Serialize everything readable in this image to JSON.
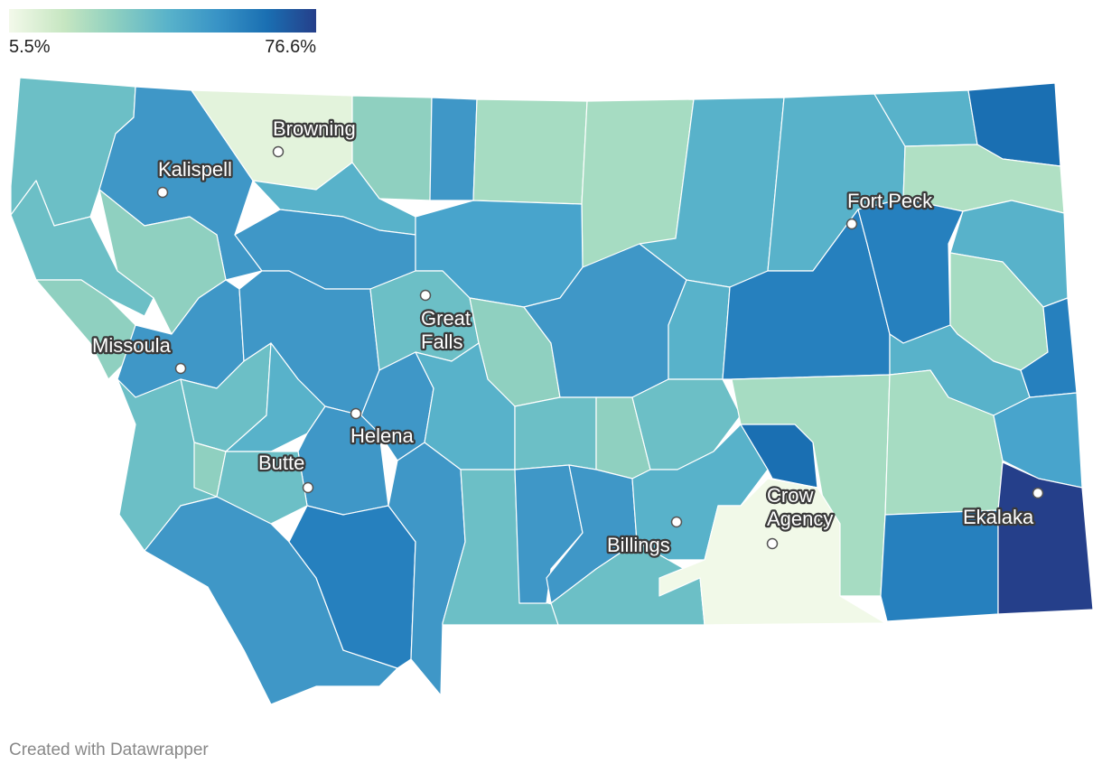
{
  "legend": {
    "min_label": "5.5%",
    "max_label": "76.6%",
    "min_value": 5.5,
    "max_value": 76.6,
    "color_scale": [
      "#f3f9ea",
      "#c6e6c1",
      "#8fd0c0",
      "#58b2ca",
      "#3893c6",
      "#1a6fb2",
      "#253f8a"
    ]
  },
  "cities": [
    {
      "name": "Browning"
    },
    {
      "name": "Kalispell"
    },
    {
      "name": "Fort Peck"
    },
    {
      "name": "Great\nFalls"
    },
    {
      "name": "Missoula"
    },
    {
      "name": "Helena"
    },
    {
      "name": "Butte"
    },
    {
      "name": "Crow\nAgency"
    },
    {
      "name": "Ekalaka"
    },
    {
      "name": "Billings"
    }
  ],
  "credit": "Created with Datawrapper"
}
